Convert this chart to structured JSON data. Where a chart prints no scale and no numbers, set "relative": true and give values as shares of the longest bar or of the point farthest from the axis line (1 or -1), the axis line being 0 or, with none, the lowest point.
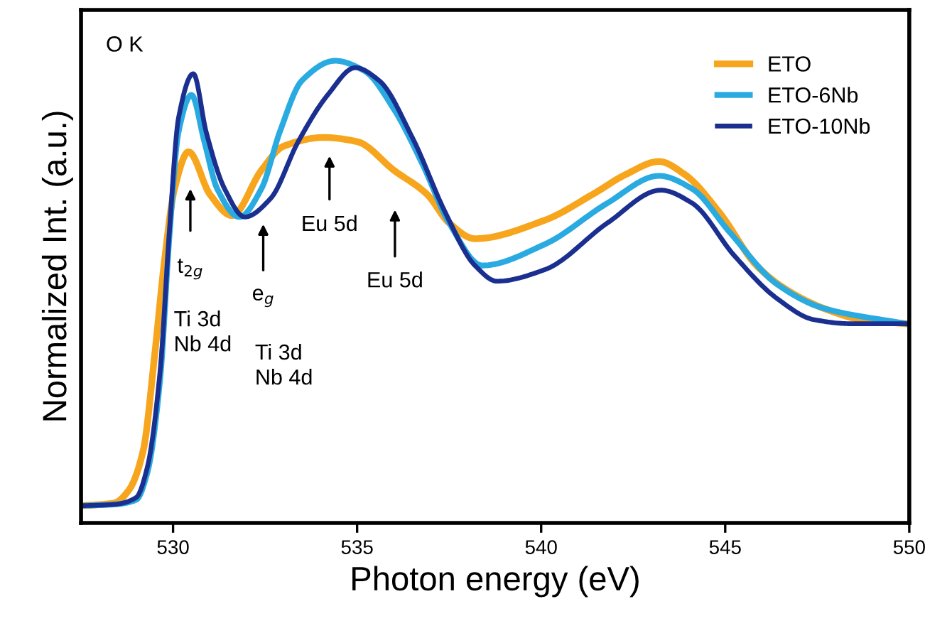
{
  "chart_data": {
    "type": "line",
    "relative": true,
    "xlabel": "Photon energy (eV)",
    "ylabel": "Normalized Int. (a.u.)",
    "xlim": [
      527.5,
      550
    ],
    "xticks": [
      530,
      535,
      540,
      545,
      550
    ],
    "grid": false,
    "legend": "top right",
    "line_style": "solid",
    "marker": "none",
    "series": [
      {
        "name": "ETO",
        "color": "#f7a51c",
        "x": [
          527.5,
          528.4,
          528.8,
          529.19,
          529.5,
          529.77,
          530.04,
          530.42,
          531.0,
          531.6,
          532.4,
          533.0,
          534.1,
          535.0,
          536.0,
          536.9,
          537.5,
          538.2,
          540.1,
          541.4,
          542.3,
          543.2,
          543.9,
          544.85,
          545.85,
          546.6,
          547.65,
          548.7,
          549.9
        ],
        "values": [
          0.037,
          0.043,
          0.071,
          0.157,
          0.363,
          0.569,
          0.723,
          0.803,
          0.711,
          0.665,
          0.763,
          0.815,
          0.834,
          0.825,
          0.763,
          0.711,
          0.649,
          0.615,
          0.655,
          0.711,
          0.754,
          0.782,
          0.754,
          0.671,
          0.557,
          0.508,
          0.465,
          0.44,
          0.431
        ]
      },
      {
        "name": "ETO-6Nb",
        "color": "#29aae1",
        "x": [
          527.5,
          528.4,
          529.0,
          529.3,
          529.65,
          529.9,
          530.15,
          530.5,
          530.85,
          531.2,
          531.8,
          532.4,
          532.9,
          533.5,
          534.4,
          535.2,
          536.0,
          536.8,
          537.5,
          538.4,
          540.1,
          541.8,
          543.2,
          544.1,
          545.1,
          546.4,
          547.65,
          549.9
        ],
        "values": [
          0.037,
          0.04,
          0.05,
          0.108,
          0.311,
          0.618,
          0.846,
          0.926,
          0.825,
          0.723,
          0.662,
          0.723,
          0.846,
          0.957,
          1.0,
          0.978,
          0.895,
          0.772,
          0.649,
          0.557,
          0.603,
          0.692,
          0.751,
          0.723,
          0.631,
          0.517,
          0.465,
          0.431
        ]
      },
      {
        "name": "ETO-10Nb",
        "color": "#1a2f8f",
        "x": [
          527.5,
          528.4,
          529.0,
          529.3,
          529.65,
          529.9,
          530.15,
          530.55,
          530.9,
          531.4,
          531.95,
          532.65,
          533.4,
          534.2,
          534.95,
          535.6,
          536.5,
          537.4,
          538.2,
          538.8,
          540.1,
          541.8,
          543.25,
          544.1,
          545.25,
          546.4,
          547.4,
          548.4,
          549.9
        ],
        "values": [
          0.037,
          0.04,
          0.055,
          0.12,
          0.33,
          0.63,
          0.877,
          0.972,
          0.846,
          0.723,
          0.662,
          0.702,
          0.825,
          0.926,
          0.985,
          0.957,
          0.834,
          0.671,
          0.557,
          0.523,
          0.548,
          0.649,
          0.72,
          0.692,
          0.578,
          0.486,
          0.44,
          0.431,
          0.431
        ]
      }
    ],
    "annotations": [
      "O K",
      "t$_{2g}$",
      "e$_{g}$",
      "Eu 5d",
      "Eu 5d",
      "Ti 3d\nNb 4d",
      "Ti 3d\nNb 4d"
    ]
  }
}
